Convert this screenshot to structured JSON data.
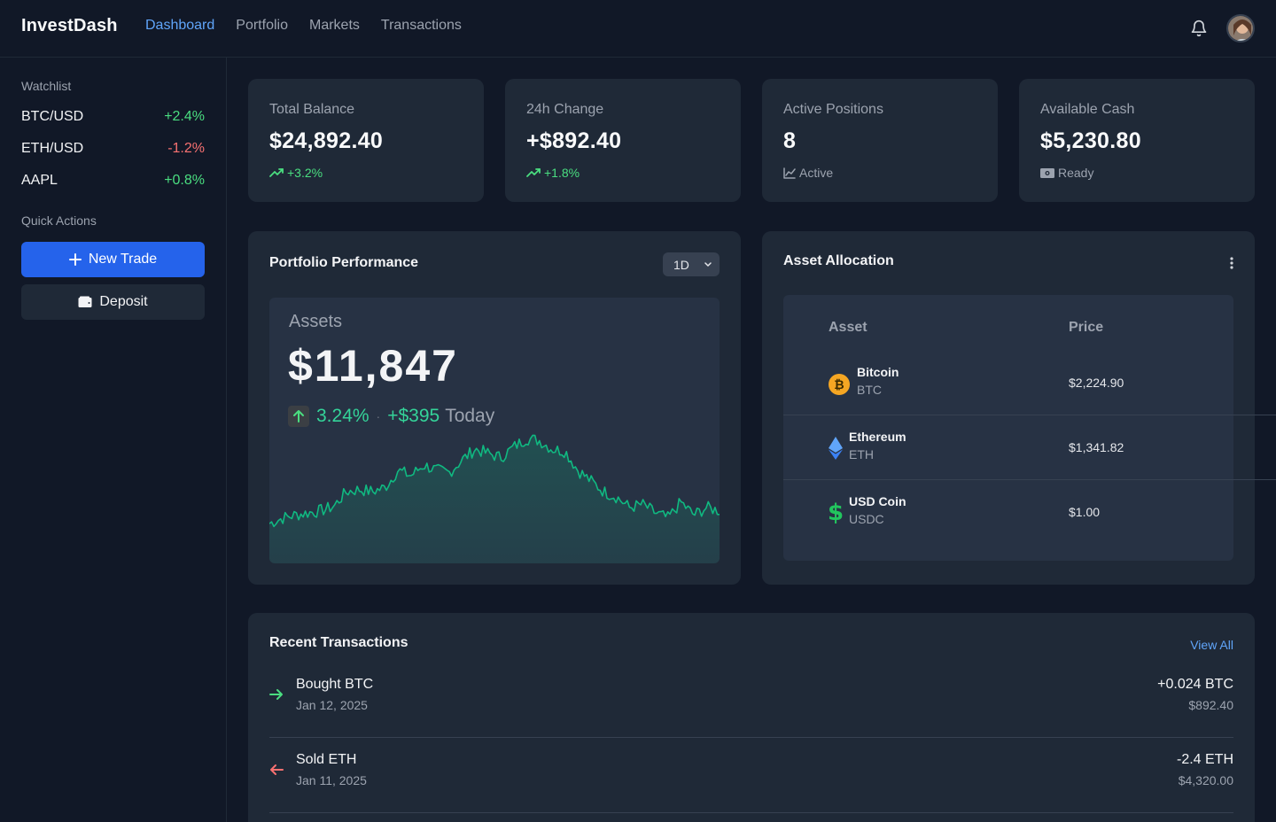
{
  "app": {
    "brand": "InvestDash",
    "nav": [
      "Dashboard",
      "Portfolio",
      "Markets",
      "Transactions"
    ],
    "active_nav": "Dashboard"
  },
  "sidebar": {
    "watchlist_heading": "Watchlist",
    "watchlist": [
      {
        "symbol": "BTC/USD",
        "change": "+2.4%",
        "direction": "up"
      },
      {
        "symbol": "ETH/USD",
        "change": "-1.2%",
        "direction": "down"
      },
      {
        "symbol": "AAPL",
        "change": "+0.8%",
        "direction": "up"
      }
    ],
    "quick_actions_heading": "Quick Actions",
    "new_trade_label": "New Trade",
    "deposit_label": "Deposit"
  },
  "stats": [
    {
      "label": "Total Balance",
      "value": "$24,892.40",
      "sub": "+3.2%",
      "sub_icon": "trending-up-icon"
    },
    {
      "label": "24h Change",
      "value": "+$892.40",
      "sub": "+1.8%",
      "sub_icon": "trending-up-icon"
    },
    {
      "label": "Active Positions",
      "value": "8",
      "sub": "Active",
      "sub_icon": "line-chart-icon"
    },
    {
      "label": "Available Cash",
      "value": "$5,230.80",
      "sub": "Ready",
      "sub_icon": "cash-icon"
    }
  ],
  "performance": {
    "title": "Portfolio Performance",
    "range": "1D",
    "assets_label": "Assets",
    "assets_value": "$11,847",
    "change_pct": "3.24%",
    "separator": "·",
    "change_abs": "+$395",
    "period": "Today"
  },
  "allocation": {
    "title": "Asset Allocation",
    "columns": [
      "Asset",
      "Price"
    ],
    "rows": [
      {
        "name": "Bitcoin",
        "symbol": "BTC",
        "price": "$2,224.90",
        "icon": "bitcoin-icon"
      },
      {
        "name": "Ethereum",
        "symbol": "ETH",
        "price": "$1,341.82",
        "icon": "ethereum-icon"
      },
      {
        "name": "USD Coin",
        "symbol": "USDC",
        "price": "$1.00",
        "icon": "dollar-icon"
      }
    ]
  },
  "transactions": {
    "title": "Recent Transactions",
    "view_all": "View All",
    "items": [
      {
        "name": "Bought BTC",
        "date": "Jan 12, 2025",
        "amount": "+0.024 BTC",
        "value": "$892.40",
        "type": "buy"
      },
      {
        "name": "Sold ETH",
        "date": "Jan 11, 2025",
        "amount": "-2.4 ETH",
        "value": "$4,320.00",
        "type": "sell"
      }
    ]
  },
  "colors": {
    "accent": "#2563eb",
    "positive": "#4ade80",
    "negative": "#f87171",
    "chart_line": "#10b981"
  }
}
